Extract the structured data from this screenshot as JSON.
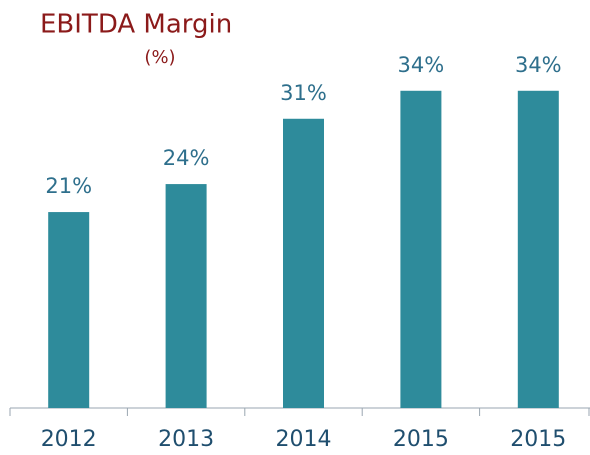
{
  "chart_data": {
    "type": "bar",
    "title": "EBITDA Margin",
    "subtitle": "(%)",
    "categories": [
      "2012",
      "2013",
      "2014",
      "2015",
      "2015"
    ],
    "values": [
      21,
      24,
      31,
      34,
      34
    ],
    "value_labels": [
      "21%",
      "24%",
      "31%",
      "34%",
      "34%"
    ],
    "color": "#2e8b9b"
  }
}
